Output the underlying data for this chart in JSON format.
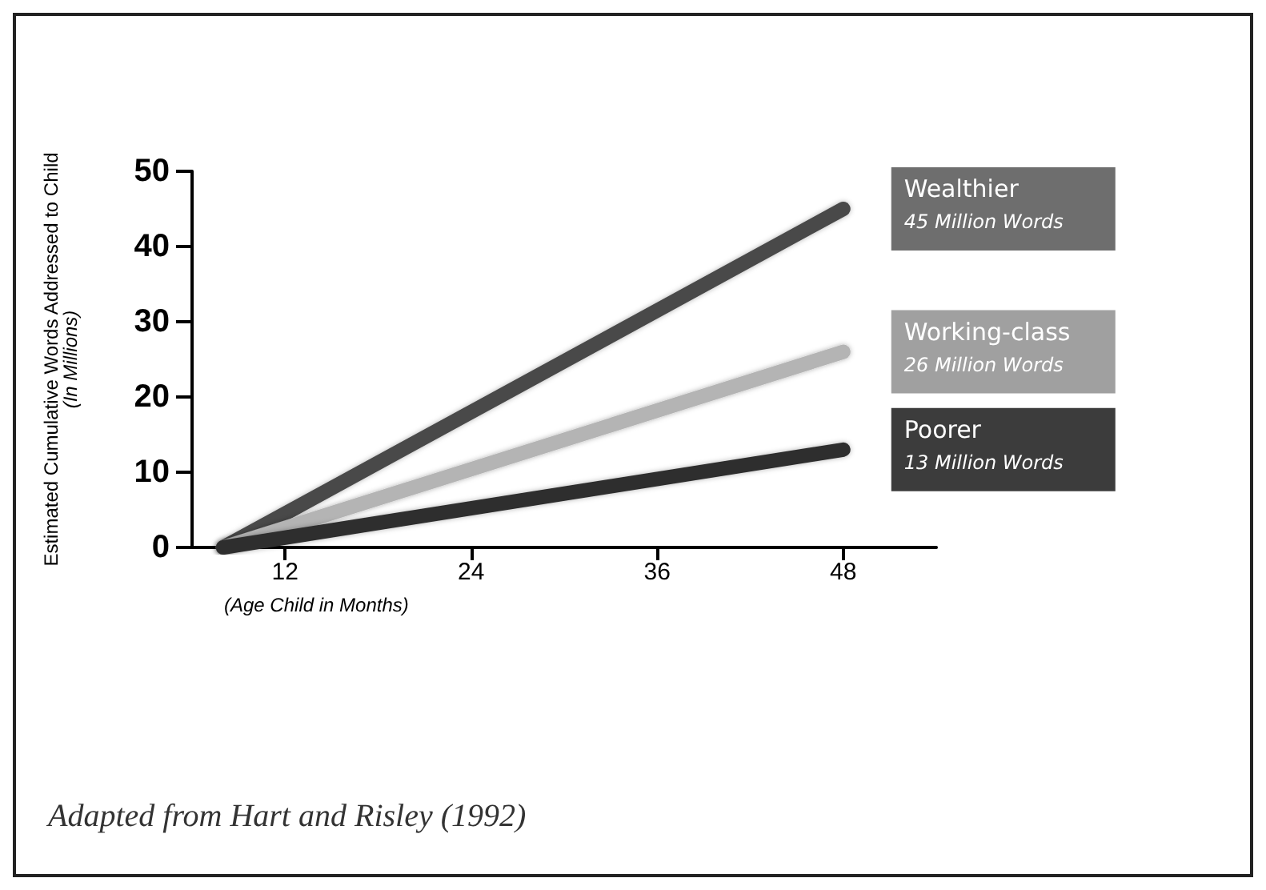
{
  "chart_data": {
    "type": "line",
    "ylabel": "Estimated Cumulative Words Addressed to Child\n(In Millions)",
    "xlabel": "(Age Child in Months)",
    "x": [
      8,
      48
    ],
    "xlim": [
      6,
      54
    ],
    "xticks": [
      12,
      24,
      36,
      48
    ],
    "ylim": [
      0,
      50
    ],
    "yticks": [
      0,
      10,
      20,
      30,
      40,
      50
    ],
    "grid": false,
    "legend": false,
    "marker": "none",
    "line_style": "solid",
    "series": [
      {
        "name": "Wealthier",
        "color": "#4a4a4a",
        "values": [
          0,
          45
        ]
      },
      {
        "name": "Working-class",
        "color": "#b4b4b4",
        "values": [
          0,
          26
        ]
      },
      {
        "name": "Poorer",
        "color": "#2e2e2e",
        "values": [
          0,
          13
        ]
      }
    ],
    "annotations": [
      "45 Million Words",
      "26 Million Words",
      "13 Million Words",
      "Adapted from Hart and Risley (1992)"
    ]
  }
}
